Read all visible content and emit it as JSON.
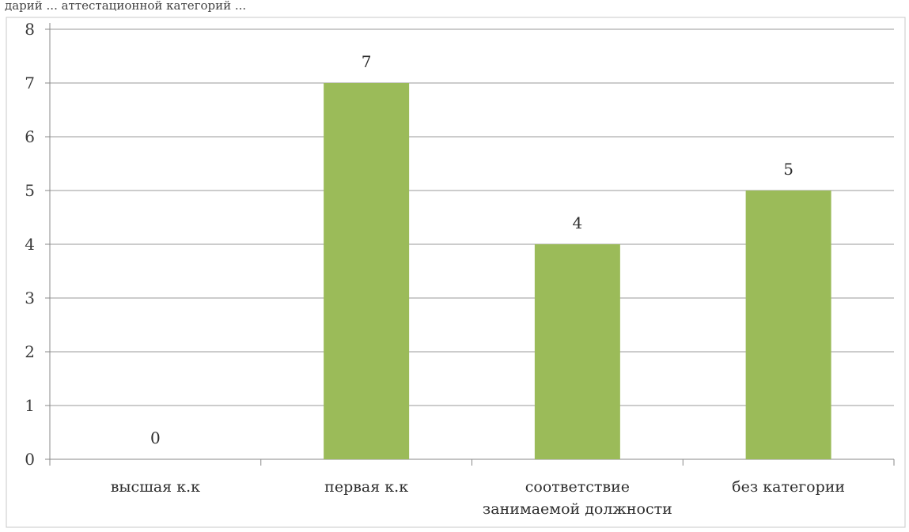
{
  "header_fragment": "дарий ... аттестационной категорий ...",
  "chart_data": {
    "type": "bar",
    "categories": [
      [
        "высшая к.к"
      ],
      [
        "первая к.к"
      ],
      [
        "соответствие",
        "занимаемой должности"
      ],
      [
        "без категории"
      ]
    ],
    "values": [
      0,
      7,
      4,
      5
    ],
    "data_labels": [
      "0",
      "7",
      "4",
      "5"
    ],
    "title": "",
    "xlabel": "",
    "ylabel": "",
    "ylim": [
      0,
      8
    ],
    "yticks": [
      0,
      1,
      2,
      3,
      4,
      5,
      6,
      7,
      8
    ],
    "grid": true,
    "legend": "none",
    "bar_color": "#9bbb59",
    "gridline_color": "#9a9a9a"
  }
}
